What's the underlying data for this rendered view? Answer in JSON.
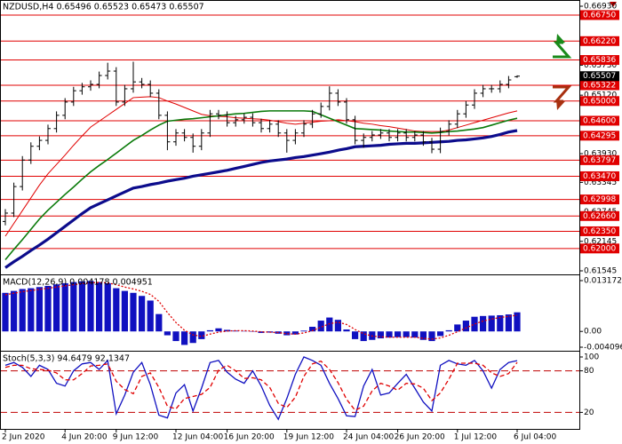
{
  "chart_data": [
    {
      "type": "candlestick",
      "title": "NZDUSD,H4  0.65496 0.65523 0.65473 0.65507",
      "color": "#000000",
      "categories": [
        "2 Jun 2020",
        null,
        null,
        null,
        null,
        null,
        null,
        "4 Jun 20:00",
        null,
        null,
        null,
        null,
        null,
        "9 Jun 12:00",
        null,
        null,
        null,
        null,
        null,
        null,
        "12 Jun 04:00",
        null,
        null,
        null,
        null,
        null,
        "16 Jun 20:00",
        null,
        null,
        null,
        null,
        null,
        null,
        "19 Jun 12:00",
        null,
        null,
        null,
        null,
        null,
        null,
        "24 Jun 04:00",
        null,
        null,
        null,
        null,
        null,
        "26 Jun 20:00",
        null,
        null,
        null,
        null,
        null,
        null,
        "1 Jul 12:00",
        null,
        null,
        null,
        null,
        null,
        null,
        "6 Jul 04:00"
      ],
      "open": [
        0.6255,
        0.6272,
        0.6326,
        0.638,
        0.6408,
        0.642,
        0.6444,
        0.6471,
        0.6498,
        0.6521,
        0.6529,
        0.6534,
        0.6552,
        0.6561,
        0.6498,
        0.6525,
        0.6539,
        0.6534,
        0.6516,
        0.6471,
        0.6417,
        0.6435,
        0.6426,
        0.6408,
        0.6435,
        0.6474,
        0.6471,
        0.6456,
        0.6462,
        0.6467,
        0.6456,
        0.6444,
        0.6453,
        0.6435,
        0.642,
        0.6435,
        0.6453,
        0.6474,
        0.6489,
        0.6516,
        0.6498,
        0.6462,
        0.642,
        0.6426,
        0.6431,
        0.6435,
        0.6426,
        0.6435,
        0.6426,
        0.6431,
        0.6417,
        0.6402,
        0.6438,
        0.6453,
        0.6474,
        0.6492,
        0.6516,
        0.6525,
        0.6525,
        0.6534,
        0.65496
      ],
      "high": [
        0.628,
        0.6334,
        0.6388,
        0.6416,
        0.6428,
        0.6452,
        0.6479,
        0.6506,
        0.6529,
        0.6537,
        0.6542,
        0.656,
        0.6578,
        0.6569,
        0.6533,
        0.658,
        0.6547,
        0.6542,
        0.6524,
        0.6479,
        0.6443,
        0.6443,
        0.6434,
        0.6443,
        0.6482,
        0.6482,
        0.6479,
        0.647,
        0.6475,
        0.6475,
        0.6464,
        0.6461,
        0.6461,
        0.6443,
        0.6443,
        0.6461,
        0.6482,
        0.6497,
        0.653,
        0.6524,
        0.6506,
        0.647,
        0.6434,
        0.6439,
        0.6443,
        0.6443,
        0.6443,
        0.6443,
        0.6439,
        0.6439,
        0.6425,
        0.6446,
        0.6461,
        0.6482,
        0.65,
        0.6524,
        0.6533,
        0.6533,
        0.6542,
        0.6551,
        0.65523
      ],
      "low": [
        0.6247,
        0.6264,
        0.6318,
        0.6372,
        0.64,
        0.6412,
        0.6436,
        0.6463,
        0.649,
        0.6513,
        0.6521,
        0.6526,
        0.6544,
        0.649,
        0.649,
        0.6517,
        0.6526,
        0.6508,
        0.6463,
        0.64,
        0.6409,
        0.6418,
        0.6395,
        0.64,
        0.6427,
        0.6463,
        0.6448,
        0.6448,
        0.6454,
        0.6448,
        0.6436,
        0.6436,
        0.6427,
        0.6395,
        0.6412,
        0.6427,
        0.6445,
        0.6466,
        0.6481,
        0.649,
        0.6454,
        0.6412,
        0.6405,
        0.6418,
        0.6423,
        0.6418,
        0.6418,
        0.6418,
        0.6418,
        0.6409,
        0.6394,
        0.6394,
        0.643,
        0.6445,
        0.6466,
        0.6484,
        0.6508,
        0.6517,
        0.6517,
        0.6526,
        0.65473
      ],
      "close": [
        0.6272,
        0.6326,
        0.638,
        0.6408,
        0.642,
        0.6444,
        0.6471,
        0.6498,
        0.6521,
        0.6529,
        0.6534,
        0.6552,
        0.6561,
        0.6498,
        0.6525,
        0.6539,
        0.6534,
        0.6516,
        0.6471,
        0.6417,
        0.6435,
        0.6426,
        0.6408,
        0.6435,
        0.6474,
        0.6471,
        0.6456,
        0.6462,
        0.6467,
        0.6456,
        0.6444,
        0.6453,
        0.6435,
        0.642,
        0.6435,
        0.6453,
        0.6474,
        0.6489,
        0.6516,
        0.6498,
        0.6462,
        0.642,
        0.6426,
        0.6431,
        0.6435,
        0.6426,
        0.6435,
        0.6426,
        0.6431,
        0.6417,
        0.6402,
        0.6438,
        0.6453,
        0.6474,
        0.6492,
        0.6516,
        0.6525,
        0.6525,
        0.6534,
        0.6543,
        0.65507
      ],
      "series": [
        {
          "color": "#e00000",
          "width": 1,
          "values": [
            0.6225,
            0.6251,
            0.6277,
            0.6303,
            0.6329,
            0.6352,
            0.6371,
            0.639,
            0.641,
            0.6429,
            0.6447,
            0.6459,
            0.6471,
            0.6483,
            0.6495,
            0.6507,
            0.6508,
            0.6509,
            0.6507,
            0.65,
            0.6494,
            0.6487,
            0.648,
            0.6473,
            0.647,
            0.6469,
            0.6468,
            0.6466,
            0.6465,
            0.6464,
            0.6463,
            0.6461,
            0.6458,
            0.6455,
            0.6453,
            0.6455,
            0.6457,
            0.6459,
            0.646,
            0.6462,
            0.646,
            0.6458,
            0.6455,
            0.6453,
            0.645,
            0.6448,
            0.6445,
            0.6442,
            0.6439,
            0.6438,
            0.6438,
            0.6438,
            0.6441,
            0.6446,
            0.6451,
            0.6456,
            0.6461,
            0.6466,
            0.6471,
            0.6476,
            0.648
          ]
        },
        {
          "color": "#0a7a0a",
          "width": 1.6,
          "values": [
            0.6177,
            0.6198,
            0.6218,
            0.6239,
            0.626,
            0.6278,
            0.6294,
            0.631,
            0.6325,
            0.6341,
            0.6356,
            0.6369,
            0.6381,
            0.6394,
            0.6407,
            0.642,
            0.643,
            0.6441,
            0.6451,
            0.6459,
            0.6461,
            0.6463,
            0.6464,
            0.6466,
            0.6468,
            0.647,
            0.6472,
            0.6474,
            0.6475,
            0.6477,
            0.6479,
            0.648,
            0.648,
            0.648,
            0.648,
            0.648,
            0.6479,
            0.6472,
            0.6465,
            0.6458,
            0.6451,
            0.6444,
            0.6443,
            0.6442,
            0.6441,
            0.6439,
            0.6438,
            0.6437,
            0.6437,
            0.6436,
            0.6435,
            0.6436,
            0.6438,
            0.6439,
            0.6441,
            0.6443,
            0.6446,
            0.6451,
            0.6456,
            0.6461,
            0.6465
          ]
        },
        {
          "color": "#0c0c8c",
          "width": 3.2,
          "values": [
            0.6161,
            0.6173,
            0.6184,
            0.6196,
            0.6207,
            0.6219,
            0.6232,
            0.6245,
            0.6258,
            0.6271,
            0.6283,
            0.6291,
            0.6299,
            0.6307,
            0.6315,
            0.6323,
            0.6326,
            0.633,
            0.6333,
            0.6337,
            0.634,
            0.6343,
            0.6347,
            0.635,
            0.6353,
            0.6356,
            0.6359,
            0.6363,
            0.6367,
            0.6371,
            0.6375,
            0.6378,
            0.638,
            0.6382,
            0.6385,
            0.6387,
            0.639,
            0.6393,
            0.6396,
            0.64,
            0.6403,
            0.6407,
            0.6408,
            0.6409,
            0.641,
            0.6412,
            0.6413,
            0.6414,
            0.6414,
            0.6415,
            0.6416,
            0.6417,
            0.6418,
            0.642,
            0.6421,
            0.6423,
            0.6425,
            0.6428,
            0.6432,
            0.6437,
            0.644
          ]
        }
      ],
      "ylim": [
        0.61545,
        0.6693
      ],
      "yticks": [
        {
          "value": 0.6693,
          "label": "0.66930"
        },
        {
          "value": 0.6573,
          "label": "0.65730"
        },
        {
          "value": 0.6512,
          "label": "0.65120"
        },
        {
          "value": 0.6393,
          "label": "0.63930"
        },
        0.63345,
        0.62745,
        0.62145,
        0.61545
      ],
      "level_color": "#e00000",
      "levels": [
        {
          "value": 0.6675,
          "label": "0.66750"
        },
        {
          "value": 0.6622,
          "label": "0.66220"
        },
        0.65836,
        0.65322,
        {
          "value": 0.65,
          "label": "0.65000"
        },
        {
          "value": 0.646,
          "label": "0.64600"
        },
        0.64295,
        0.63797,
        {
          "value": 0.6347,
          "label": "0.63470"
        },
        0.62998,
        {
          "value": 0.6266,
          "label": "0.62660"
        },
        {
          "value": 0.6235,
          "label": "0.62350"
        },
        {
          "value": 0.62,
          "label": "0.62000"
        }
      ],
      "current_price": 0.65507
    },
    {
      "type": "bar",
      "title": "MACD(12,26,9) 0.004178 0.004951",
      "color": "#1010c0",
      "values": [
        0.01,
        0.0105,
        0.011,
        0.0112,
        0.0115,
        0.0118,
        0.0122,
        0.0125,
        0.0128,
        0.013,
        0.0131,
        0.0128,
        0.0125,
        0.0112,
        0.0105,
        0.01,
        0.0092,
        0.008,
        0.0045,
        -0.001,
        -0.0025,
        -0.0035,
        -0.003,
        -0.002,
        0.0003,
        0.0008,
        0.0004,
        0.0002,
        0.0001,
        -0.0001,
        -0.0004,
        -0.0003,
        -0.0006,
        -0.001,
        -0.0008,
        0.0002,
        0.0012,
        0.0028,
        0.0036,
        0.003,
        0.0005,
        -0.002,
        -0.0025,
        -0.0022,
        -0.0018,
        -0.0016,
        -0.0015,
        -0.0015,
        -0.0016,
        -0.0022,
        -0.0025,
        -0.0012,
        0.0003,
        0.0018,
        0.0028,
        0.0038,
        0.004,
        0.0041,
        0.0042,
        0.0044,
        0.004951
      ],
      "series": [
        {
          "color": "#e00000",
          "style": "dotted",
          "values": [
            0.0095,
            0.0099,
            0.0103,
            0.0106,
            0.0109,
            0.0112,
            0.0115,
            0.0118,
            0.0121,
            0.0124,
            0.0126,
            0.0127,
            0.0126,
            0.0121,
            0.0115,
            0.011,
            0.0104,
            0.0096,
            0.0078,
            0.0049,
            0.0023,
            0.0003,
            -0.0009,
            -0.0013,
            -0.0007,
            -0.0002,
            0.0001,
            0.0002,
            0.0002,
            0.0001,
            -0.0001,
            -0.0002,
            -0.0003,
            -0.0006,
            -0.0007,
            -0.0004,
            0.0002,
            0.0011,
            0.002,
            0.0024,
            0.0018,
            0.0005,
            -0.0006,
            -0.0012,
            -0.0014,
            -0.0015,
            -0.0015,
            -0.0015,
            -0.0015,
            -0.0018,
            -0.002,
            -0.0017,
            -0.001,
            -0.0001,
            0.0009,
            0.0019,
            0.0027,
            0.0032,
            0.0036,
            0.0039,
            0.004178
          ]
        }
      ],
      "ylim": [
        -0.004096,
        0.013172
      ],
      "yticks": [
        0.013172,
        {
          "value": 0,
          "label": "0.00"
        },
        -0.004096
      ]
    },
    {
      "type": "line",
      "title": "Stoch(5,3,3) 94.6479 92.1347",
      "series": [
        {
          "color": "#1010c0",
          "style": "solid",
          "values": [
            88,
            92,
            85,
            72,
            88,
            82,
            62,
            58,
            80,
            90,
            92,
            82,
            95,
            18,
            45,
            78,
            92,
            60,
            16,
            12,
            48,
            60,
            22,
            55,
            92,
            95,
            78,
            68,
            62,
            80,
            58,
            30,
            10,
            40,
            75,
            100,
            95,
            88,
            62,
            40,
            15,
            14,
            58,
            82,
            45,
            48,
            62,
            75,
            55,
            35,
            22,
            88,
            95,
            90,
            88,
            95,
            80,
            55,
            82,
            92,
            94.6479
          ]
        },
        {
          "color": "#e00000",
          "style": "dashed",
          "values": [
            85,
            88,
            88,
            83,
            82,
            81,
            77,
            67,
            67,
            76,
            87,
            88,
            90,
            65,
            53,
            47,
            72,
            77,
            56,
            29,
            25,
            40,
            43,
            46,
            56,
            81,
            88,
            80,
            69,
            70,
            67,
            56,
            33,
            27,
            42,
            72,
            90,
            94,
            82,
            63,
            39,
            23,
            29,
            51,
            62,
            58,
            52,
            62,
            61,
            55,
            37,
            48,
            68,
            91,
            91,
            91,
            88,
            77,
            72,
            76,
            92.1347
          ]
        }
      ],
      "ylim": [
        0,
        100
      ],
      "yticks": [
        100,
        80,
        20
      ],
      "grid": true,
      "grid_color": "#c00000"
    }
  ]
}
